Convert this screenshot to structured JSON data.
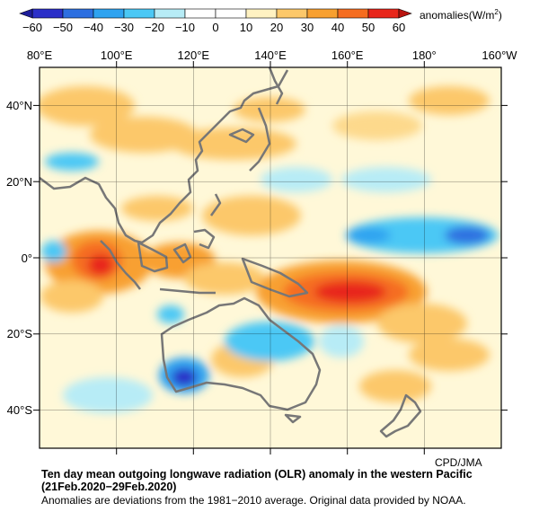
{
  "colorbar": {
    "ticks": [
      "−60",
      "−50",
      "−40",
      "−30",
      "−20",
      "−10",
      "0",
      "10",
      "20",
      "30",
      "40",
      "50",
      "60"
    ],
    "units_label": "anomalies(W/m",
    "units_sup": "2",
    "units_close": ")",
    "colors": [
      "#2b2fc8",
      "#2d6fe0",
      "#2fa3f0",
      "#4bc8f5",
      "#b7ecf6",
      "#ffffff",
      "#ffffff",
      "#fff2c2",
      "#fcc86a",
      "#f8a030",
      "#f56d20",
      "#e8261a"
    ]
  },
  "map": {
    "lon_labels": [
      "80°E",
      "100°E",
      "120°E",
      "140°E",
      "160°E",
      "180°",
      "160°W"
    ],
    "lat_labels": [
      "40°N",
      "20°N",
      "0°",
      "20°S",
      "40°S"
    ]
  },
  "credit": "CPD/JMA",
  "caption": {
    "title": "Ten day mean outgoing longwave radiation (OLR) anomaly in the western Pacific",
    "period": "(21Feb.2020−29Feb.2020)",
    "note": "Anomalies are deviations from the 1981−2010 average. Original data provided by NOAA."
  }
}
